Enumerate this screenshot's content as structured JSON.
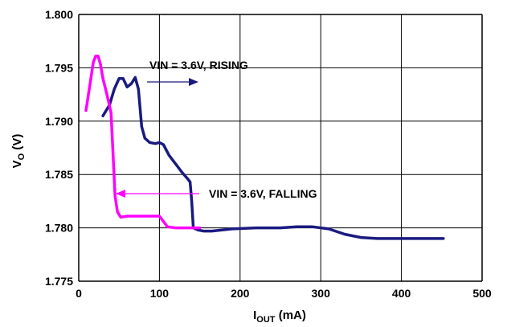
{
  "chart_data": {
    "type": "line",
    "xlabel": {
      "main": "I",
      "sub": "OUT",
      "rest": " (mA)"
    },
    "ylabel": {
      "main": "V",
      "sub": "O",
      "rest": " (V)"
    },
    "xlim": [
      0,
      500
    ],
    "ylim": [
      1.775,
      1.8
    ],
    "x_ticks": [
      "0",
      "100",
      "200",
      "300",
      "400",
      "500"
    ],
    "y_ticks": [
      "1.775",
      "1.780",
      "1.785",
      "1.790",
      "1.795",
      "1.800"
    ],
    "grid": true,
    "colors": {
      "rising": "#1a1a80",
      "falling": "#ff00ff",
      "grid": "#000000"
    },
    "series": [
      {
        "name": "VIN = 3.6V, RISING",
        "color": "#1a1a80",
        "points": [
          [
            30,
            1.7905
          ],
          [
            38,
            1.7915
          ],
          [
            44,
            1.793
          ],
          [
            50,
            1.794
          ],
          [
            55,
            1.794
          ],
          [
            60,
            1.7932
          ],
          [
            65,
            1.7935
          ],
          [
            70,
            1.7941
          ],
          [
            74,
            1.793
          ],
          [
            78,
            1.7895
          ],
          [
            82,
            1.7884
          ],
          [
            88,
            1.788
          ],
          [
            95,
            1.7879
          ],
          [
            100,
            1.788
          ],
          [
            105,
            1.7878
          ],
          [
            112,
            1.7868
          ],
          [
            120,
            1.786
          ],
          [
            128,
            1.7852
          ],
          [
            135,
            1.7846
          ],
          [
            138,
            1.7843
          ],
          [
            140,
            1.7825
          ],
          [
            142,
            1.78
          ],
          [
            148,
            1.7798
          ],
          [
            155,
            1.7797
          ],
          [
            165,
            1.7797
          ],
          [
            190,
            1.7799
          ],
          [
            220,
            1.78
          ],
          [
            250,
            1.78
          ],
          [
            270,
            1.7801
          ],
          [
            290,
            1.7801
          ],
          [
            310,
            1.7799
          ],
          [
            330,
            1.7794
          ],
          [
            350,
            1.7791
          ],
          [
            370,
            1.779
          ],
          [
            400,
            1.779
          ],
          [
            430,
            1.779
          ],
          [
            452,
            1.779
          ]
        ]
      },
      {
        "name": "VIN = 3.6V, FALLING",
        "color": "#ff00ff",
        "points": [
          [
            9,
            1.791
          ],
          [
            14,
            1.7935
          ],
          [
            18,
            1.7955
          ],
          [
            21,
            1.7961
          ],
          [
            24,
            1.7961
          ],
          [
            27,
            1.7953
          ],
          [
            30,
            1.794
          ],
          [
            35,
            1.7925
          ],
          [
            40,
            1.7908
          ],
          [
            45,
            1.783
          ],
          [
            48,
            1.7815
          ],
          [
            52,
            1.781
          ],
          [
            60,
            1.7811
          ],
          [
            70,
            1.7811
          ],
          [
            80,
            1.7811
          ],
          [
            90,
            1.7811
          ],
          [
            100,
            1.7811
          ],
          [
            105,
            1.7806
          ],
          [
            110,
            1.7801
          ],
          [
            120,
            1.78
          ],
          [
            130,
            1.78
          ],
          [
            140,
            1.78
          ],
          [
            150,
            1.78
          ]
        ]
      }
    ],
    "annotations": [
      {
        "text": "VIN = 3.6V, RISING",
        "color": "#1a1a80"
      },
      {
        "text": "VIN = 3.6V, FALLING",
        "color": "#ff00ff"
      }
    ]
  }
}
